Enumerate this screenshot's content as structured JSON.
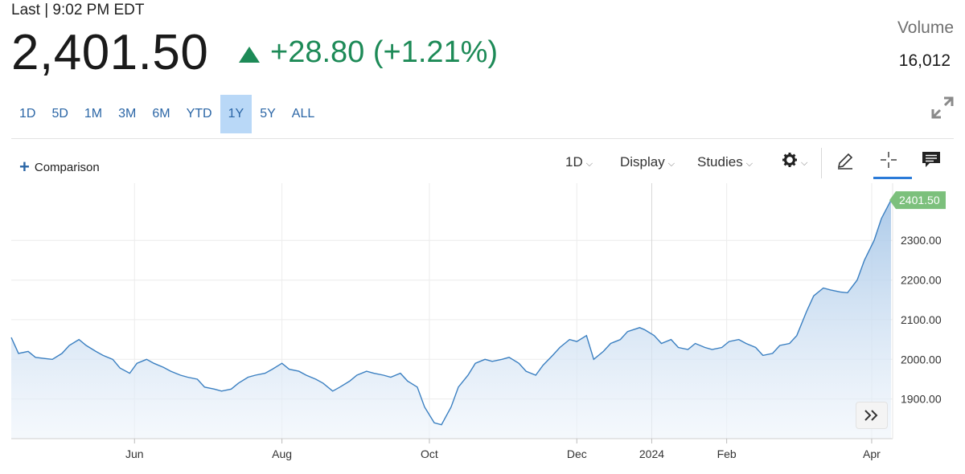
{
  "header": {
    "last_label": "Last | 9:02 PM EDT",
    "price": "2,401.50",
    "change": "+28.80 (+1.21%)",
    "volume_label": "Volume",
    "volume_value": "16,012",
    "direction_icon": "up-triangle-icon",
    "up_color": "#1d8a57"
  },
  "range_tabs": [
    "1D",
    "5D",
    "1M",
    "3M",
    "6M",
    "YTD",
    "1Y",
    "5Y",
    "ALL"
  ],
  "active_range": "1Y",
  "toolbar": {
    "comparison_label": "Comparison",
    "interval_label": "1D",
    "display_label": "Display",
    "studies_label": "Studies",
    "icons": [
      "gear-icon",
      "pencil-icon",
      "crosshair-icon",
      "comment-icon",
      "expand-icon",
      "double-chevron-right-icon"
    ]
  },
  "colors": {
    "accent": "#2b66a6",
    "line": "#3a7fc1",
    "last_badge": "#7cc07c"
  },
  "chart_data": {
    "type": "area",
    "title": "",
    "xlabel": "",
    "ylabel": "",
    "x_tick_labels": [
      "Jun",
      "Aug",
      "Oct",
      "Dec",
      "2024",
      "Feb",
      "Apr"
    ],
    "y_tick_labels": [
      "2300.00",
      "2200.00",
      "2100.00",
      "2000.00",
      "1900.00"
    ],
    "y_ticks": [
      2300,
      2200,
      2100,
      2000,
      1900
    ],
    "ylim": [
      1800,
      2420
    ],
    "last_value_label": "2401.50",
    "grid": true,
    "legend": "none",
    "series": [
      {
        "x": [
          "2023-04-11",
          "2023-04-14",
          "2023-04-18",
          "2023-04-21",
          "2023-04-25",
          "2023-04-28",
          "2023-05-02",
          "2023-05-05",
          "2023-05-09",
          "2023-05-12",
          "2023-05-16",
          "2023-05-19",
          "2023-05-23",
          "2023-05-26",
          "2023-05-30",
          "2023-06-02",
          "2023-06-06",
          "2023-06-09",
          "2023-06-13",
          "2023-06-16",
          "2023-06-20",
          "2023-06-23",
          "2023-06-27",
          "2023-06-30",
          "2023-07-04",
          "2023-07-07",
          "2023-07-11",
          "2023-07-14",
          "2023-07-18",
          "2023-07-21",
          "2023-07-25",
          "2023-07-28",
          "2023-08-01",
          "2023-08-04",
          "2023-08-08",
          "2023-08-11",
          "2023-08-15",
          "2023-08-18",
          "2023-08-22",
          "2023-08-25",
          "2023-08-29",
          "2023-09-01",
          "2023-09-05",
          "2023-09-08",
          "2023-09-12",
          "2023-09-15",
          "2023-09-19",
          "2023-09-22",
          "2023-09-26",
          "2023-09-29",
          "2023-10-03",
          "2023-10-06",
          "2023-10-10",
          "2023-10-13",
          "2023-10-17",
          "2023-10-20",
          "2023-10-24",
          "2023-10-27",
          "2023-10-31",
          "2023-11-03",
          "2023-11-07",
          "2023-11-10",
          "2023-11-14",
          "2023-11-17",
          "2023-11-21",
          "2023-11-24",
          "2023-11-28",
          "2023-12-01",
          "2023-12-05",
          "2023-12-08",
          "2023-12-12",
          "2023-12-15",
          "2023-12-19",
          "2023-12-22",
          "2023-12-27",
          "2023-12-29",
          "2024-01-02",
          "2024-01-05",
          "2024-01-09",
          "2024-01-12",
          "2024-01-16",
          "2024-01-19",
          "2024-01-23",
          "2024-01-26",
          "2024-01-30",
          "2024-02-02",
          "2024-02-06",
          "2024-02-09",
          "2024-02-13",
          "2024-02-16",
          "2024-02-20",
          "2024-02-23",
          "2024-02-27",
          "2024-03-01",
          "2024-03-05",
          "2024-03-08",
          "2024-03-12",
          "2024-03-15",
          "2024-03-19",
          "2024-03-22",
          "2024-03-26",
          "2024-03-29",
          "2024-04-02",
          "2024-04-05",
          "2024-04-09"
        ],
        "values": [
          2055,
          2015,
          2020,
          2005,
          2002,
          2000,
          2015,
          2035,
          2050,
          2035,
          2020,
          2010,
          2000,
          1978,
          1965,
          1990,
          2000,
          1990,
          1980,
          1970,
          1960,
          1955,
          1950,
          1930,
          1925,
          1920,
          1925,
          1940,
          1955,
          1960,
          1965,
          1975,
          1990,
          1975,
          1970,
          1960,
          1950,
          1940,
          1920,
          1930,
          1945,
          1960,
          1970,
          1965,
          1960,
          1955,
          1965,
          1945,
          1930,
          1880,
          1840,
          1835,
          1880,
          1930,
          1960,
          1990,
          2000,
          1995,
          2000,
          2005,
          1990,
          1970,
          1960,
          1985,
          2010,
          2030,
          2050,
          2045,
          2060,
          2000,
          2020,
          2040,
          2050,
          2070,
          2080,
          2075,
          2060,
          2040,
          2050,
          2030,
          2025,
          2040,
          2030,
          2025,
          2030,
          2045,
          2050,
          2040,
          2030,
          2010,
          2015,
          2035,
          2040,
          2060,
          2120,
          2160,
          2180,
          2175,
          2170,
          2168,
          2200,
          2250,
          2300,
          2355,
          2401.5
        ]
      }
    ]
  }
}
